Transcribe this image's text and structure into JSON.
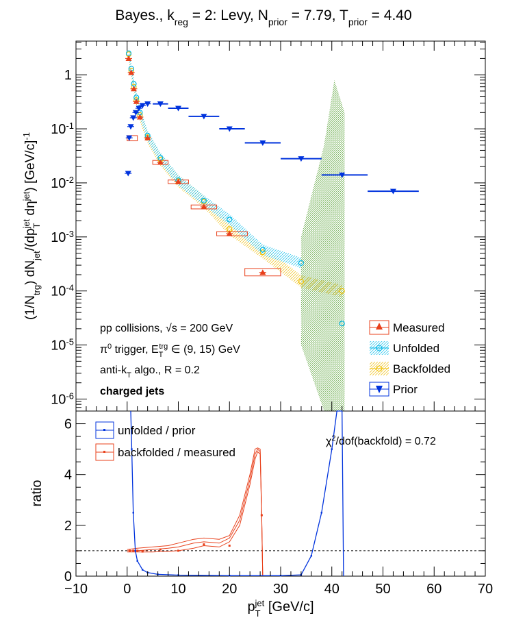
{
  "title": {
    "main": "Bayes., k",
    "kreg_sub": "reg",
    "mid": " = 2: Levy, N",
    "nprior_sub": "prior",
    "nval": " = 7.79, T",
    "tprior_sub": "prior",
    "tval": " = 4.40"
  },
  "chart_data": [
    {
      "type": "scatter",
      "panel": "spectrum",
      "ylabel": "(1/N_trg) dN_jet/(dp_T^jet dη^jet) [GeV/c]^-1",
      "yscale": "log",
      "xlim": [
        -10,
        70
      ],
      "ylim": [
        6e-07,
        4.2
      ],
      "y_tick_labels": [
        "1",
        "10^-1",
        "10^-2",
        "10^-3",
        "10^-4",
        "10^-5",
        "10^-6"
      ],
      "annotations": [
        "pp collisions, √s = 200 GeV",
        "π0 trigger, E_T^trg ∈ (9, 15) GeV",
        "anti-k_T algo., R = 0.2",
        "charged jets"
      ],
      "legend": {
        "position": "bottom-right",
        "entries": [
          "Measured",
          "Unfolded",
          "Backfolded",
          "Prior"
        ]
      },
      "series": [
        {
          "name": "Measured",
          "color": "#e8401b",
          "points": [
            [
              0.3,
              2.0
            ],
            [
              0.8,
              1.1
            ],
            [
              1.3,
              0.55
            ],
            [
              1.8,
              0.32
            ],
            [
              2.5,
              0.165
            ],
            [
              4,
              0.068
            ],
            [
              6.5,
              0.024
            ],
            [
              10,
              0.0105
            ],
            [
              15,
              0.0036
            ],
            [
              20,
              0.00115
            ],
            [
              26.5,
              0.00022
            ]
          ],
          "boxes": [
            [
              0,
              2,
              0.06,
              0.075
            ],
            [
              5,
              8,
              0.022,
              0.026
            ],
            [
              8,
              12,
              0.0097,
              0.0113
            ],
            [
              12.5,
              17.5,
              0.0033,
              0.0039
            ],
            [
              17.5,
              23.5,
              0.00105,
              0.00125
            ],
            [
              23,
              30,
              0.00019,
              0.00026
            ]
          ]
        },
        {
          "name": "Unfolded",
          "color": "#00b5e6",
          "points": [
            [
              0.3,
              2.5
            ],
            [
              0.8,
              1.3
            ],
            [
              1.3,
              0.68
            ],
            [
              1.8,
              0.38
            ],
            [
              2.5,
              0.2
            ],
            [
              4,
              0.075
            ],
            [
              6.5,
              0.029
            ],
            [
              10,
              0.0112
            ],
            [
              15,
              0.0047
            ],
            [
              20,
              0.0021
            ],
            [
              26.5,
              0.00058
            ],
            [
              34,
              0.00033
            ],
            [
              42,
              2.5e-05
            ]
          ]
        },
        {
          "name": "Backfolded",
          "color": "#f0c000",
          "points": [
            [
              0.3,
              2.4
            ],
            [
              0.8,
              1.2
            ],
            [
              1.3,
              0.6
            ],
            [
              1.8,
              0.34
            ],
            [
              2.5,
              0.18
            ],
            [
              4,
              0.07
            ],
            [
              6.5,
              0.027
            ],
            [
              10,
              0.0108
            ],
            [
              15,
              0.0045
            ],
            [
              20,
              0.0014
            ],
            [
              26.5,
              0.00052
            ],
            [
              34,
              0.00015
            ],
            [
              42,
              0.0001
            ]
          ]
        },
        {
          "name": "Prior",
          "color": "#0033dd",
          "points": [
            [
              0.2,
              0.015
            ],
            [
              0.4,
              0.068
            ],
            [
              0.7,
              0.11
            ],
            [
              1.2,
              0.16
            ],
            [
              1.7,
              0.2
            ],
            [
              2.3,
              0.24
            ],
            [
              3,
              0.27
            ],
            [
              4,
              0.29
            ],
            [
              6.5,
              0.29
            ],
            [
              10,
              0.24
            ],
            [
              15,
              0.17
            ],
            [
              20,
              0.1
            ],
            [
              26.5,
              0.055
            ],
            [
              34,
              0.028
            ],
            [
              42,
              0.014
            ],
            [
              52,
              0.007
            ]
          ],
          "xerr": [
            [
              5,
              8
            ],
            [
              8,
              12
            ],
            [
              12,
              18
            ],
            [
              18,
              23
            ],
            [
              23,
              30
            ],
            [
              30,
              38
            ],
            [
              38,
              47
            ],
            [
              47,
              57
            ]
          ]
        }
      ],
      "green_band": {
        "x": [
          34,
          38.5,
          40.5,
          42.5
        ],
        "ylow": [
          1e-05,
          6e-07,
          6e-07,
          6e-07
        ],
        "yhigh": [
          0.001,
          0.05,
          0.8,
          0.2
        ]
      }
    },
    {
      "type": "line",
      "panel": "ratio",
      "xlabel": "p_T^jet [GeV/c]",
      "ylabel": "ratio",
      "xlim": [
        -10,
        70
      ],
      "ylim": [
        0,
        6.5
      ],
      "x_tick_labels": [
        "−10",
        "0",
        "10",
        "20",
        "30",
        "40",
        "50",
        "60",
        "70"
      ],
      "y_tick_labels": [
        "0",
        "2",
        "4",
        "6"
      ],
      "reference_line": 1,
      "annotation": "χ2/dof(backfold) = 0.72",
      "legend": {
        "position": "top-left",
        "entries": [
          "unfolded / prior",
          "backfolded / measured"
        ]
      },
      "series": [
        {
          "name": "unfolded / prior",
          "color": "#0033dd",
          "x": [
            0.7,
            0.9,
            1.2,
            1.6,
            2,
            3,
            4,
            6,
            10,
            20,
            30,
            34,
            36,
            38,
            40,
            41,
            42,
            42.3
          ],
          "y": [
            6.5,
            5.0,
            2.5,
            1.0,
            0.6,
            0.25,
            0.14,
            0.07,
            0.04,
            0.02,
            0.02,
            0.05,
            0.8,
            2.5,
            5.0,
            6.5,
            6.5,
            0
          ]
        },
        {
          "name": "backfolded / measured",
          "color": "#e8401b",
          "x": [
            0,
            2,
            5,
            8,
            10,
            13,
            15,
            18,
            20,
            22,
            24,
            25,
            25.5,
            26,
            26.3,
            26.5
          ],
          "y": [
            1,
            1.0,
            1.05,
            1.1,
            1.15,
            1.3,
            1.35,
            1.3,
            1.5,
            2.2,
            3.8,
            4.8,
            5.0,
            4.9,
            2.4,
            0
          ],
          "band_high": [
            1.05,
            1.1,
            1.15,
            1.2,
            1.3,
            1.45,
            1.5,
            1.45,
            1.6,
            2.4,
            4.0,
            5.0,
            5.05,
            5.0,
            2.5,
            0
          ],
          "band_low": [
            0.95,
            0.95,
            0.95,
            0.98,
            1.0,
            1.1,
            1.2,
            1.15,
            1.35,
            2.0,
            3.6,
            4.6,
            4.9,
            4.8,
            2.3,
            0
          ],
          "markers": [
            [
              0.5,
              1.0
            ],
            [
              1.2,
              1.0
            ],
            [
              2,
              1.0
            ],
            [
              3,
              0.97
            ],
            [
              6.5,
              1.05
            ],
            [
              10,
              1.0
            ],
            [
              15,
              1.25
            ],
            [
              20,
              1.2
            ],
            [
              26.3,
              2.4
            ]
          ]
        }
      ]
    }
  ]
}
